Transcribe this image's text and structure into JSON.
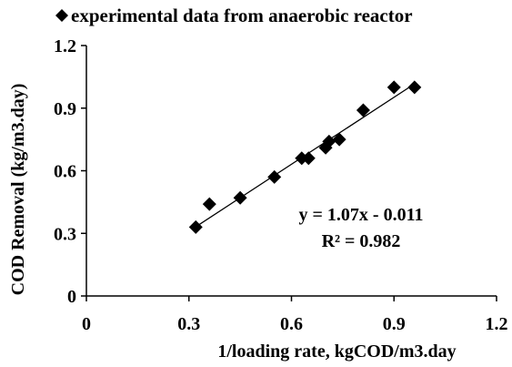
{
  "chart_data": {
    "type": "scatter",
    "title": "",
    "xlabel": "1/loading rate, kgCOD/m3.day",
    "ylabel": "COD Removal (kg/m3.day)",
    "xlim": [
      0,
      1.2
    ],
    "ylim": [
      0,
      1.2
    ],
    "x_ticks": [
      "0",
      "0.3",
      "0.6",
      "0.9",
      "1.2"
    ],
    "y_ticks": [
      "0",
      "0.3",
      "0.6",
      "0.9",
      "1.2"
    ],
    "grid": false,
    "legend": {
      "position": "top",
      "entries": [
        "experimental data from anaerobic reactor"
      ]
    },
    "series": [
      {
        "name": "experimental data from anaerobic reactor",
        "marker": "diamond",
        "color": "#000000",
        "x": [
          0.32,
          0.36,
          0.45,
          0.55,
          0.63,
          0.65,
          0.7,
          0.71,
          0.74,
          0.81,
          0.9,
          0.96
        ],
        "y": [
          0.33,
          0.44,
          0.47,
          0.57,
          0.66,
          0.66,
          0.71,
          0.74,
          0.75,
          0.89,
          1.0,
          1.0
        ]
      }
    ],
    "trendline": {
      "slope": 1.07,
      "intercept": -0.011,
      "x_range": [
        0.32,
        0.96
      ],
      "color": "#000000"
    },
    "annotations": {
      "equation": "y = 1.07x - 0.011",
      "r_squared": "R² = 0.982"
    }
  }
}
